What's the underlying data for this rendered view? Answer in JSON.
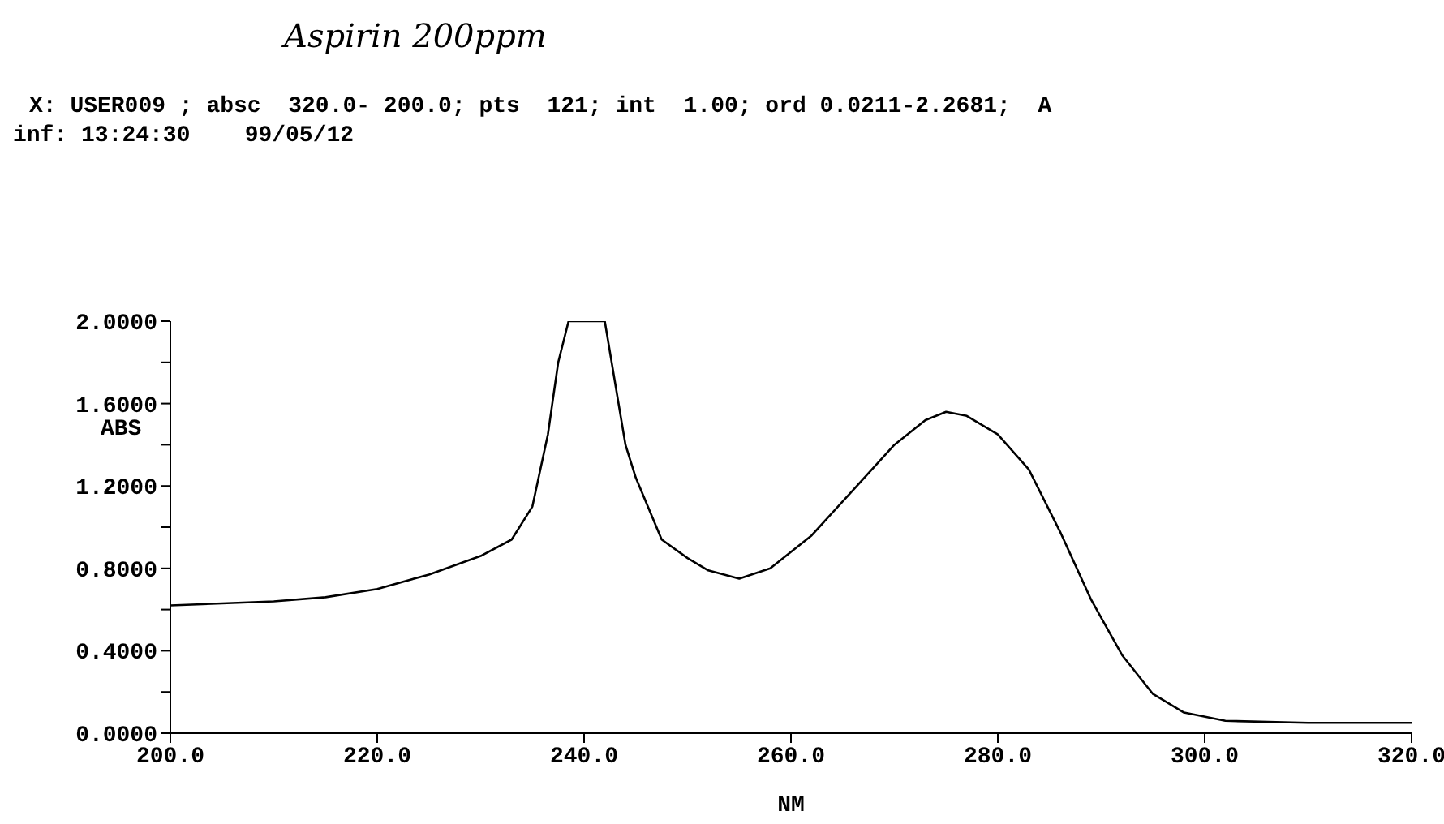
{
  "chart_data": {
    "type": "line",
    "title": "Aspirin 200ppm",
    "subtitle": "X: USER009 ; absc  320.0- 200.0; pts  121; int  1.00; ord 0.0211-2.2681;  A",
    "annotations": [
      "inf: 13:24:30    99/05/12"
    ],
    "xlabel": "NM",
    "ylabel": "ABS",
    "x": [
      200,
      205,
      210,
      215,
      220,
      225,
      230,
      233,
      235,
      236.5,
      237.5,
      238.5,
      242,
      243,
      244,
      245,
      247.5,
      250,
      252,
      255,
      258,
      262,
      266,
      270,
      273,
      275,
      277,
      280,
      283,
      286,
      289,
      292,
      295,
      298,
      302,
      310,
      320
    ],
    "series": [
      {
        "color": "#000000",
        "values": [
          0.62,
          0.63,
          0.64,
          0.66,
          0.7,
          0.77,
          0.86,
          0.94,
          1.1,
          1.45,
          1.8,
          2.0,
          2.0,
          1.7,
          1.4,
          1.24,
          0.94,
          0.85,
          0.79,
          0.75,
          0.8,
          0.96,
          1.18,
          1.4,
          1.52,
          1.56,
          1.54,
          1.45,
          1.28,
          0.98,
          0.65,
          0.38,
          0.19,
          0.1,
          0.06,
          0.05,
          0.05
        ]
      }
    ],
    "xlim": [
      200,
      320
    ],
    "xticks": [
      {
        "value": 200,
        "label": "200.0"
      },
      {
        "value": 220,
        "label": "220.0"
      },
      {
        "value": 240,
        "label": "240.0"
      },
      {
        "value": 260,
        "label": "260.0"
      },
      {
        "value": 280,
        "label": "280.0"
      },
      {
        "value": 300,
        "label": "300.0"
      },
      {
        "value": 320,
        "label": "320.0"
      }
    ],
    "ylim": [
      0,
      2
    ],
    "yticks": [
      {
        "value": 0,
        "label": "0.0000"
      },
      {
        "value": 0.2,
        "label": null
      },
      {
        "value": 0.4,
        "label": "0.4000"
      },
      {
        "value": 0.6,
        "label": null
      },
      {
        "value": 0.8,
        "label": "0.8000"
      },
      {
        "value": 1.0,
        "label": null
      },
      {
        "value": 1.2,
        "label": "1.2000"
      },
      {
        "value": 1.4,
        "label": null
      },
      {
        "value": 1.6,
        "label": "1.6000"
      },
      {
        "value": 1.8,
        "label": null
      },
      {
        "value": 2.0,
        "label": "2.0000"
      }
    ],
    "marker": "none",
    "line_style": "solid"
  }
}
